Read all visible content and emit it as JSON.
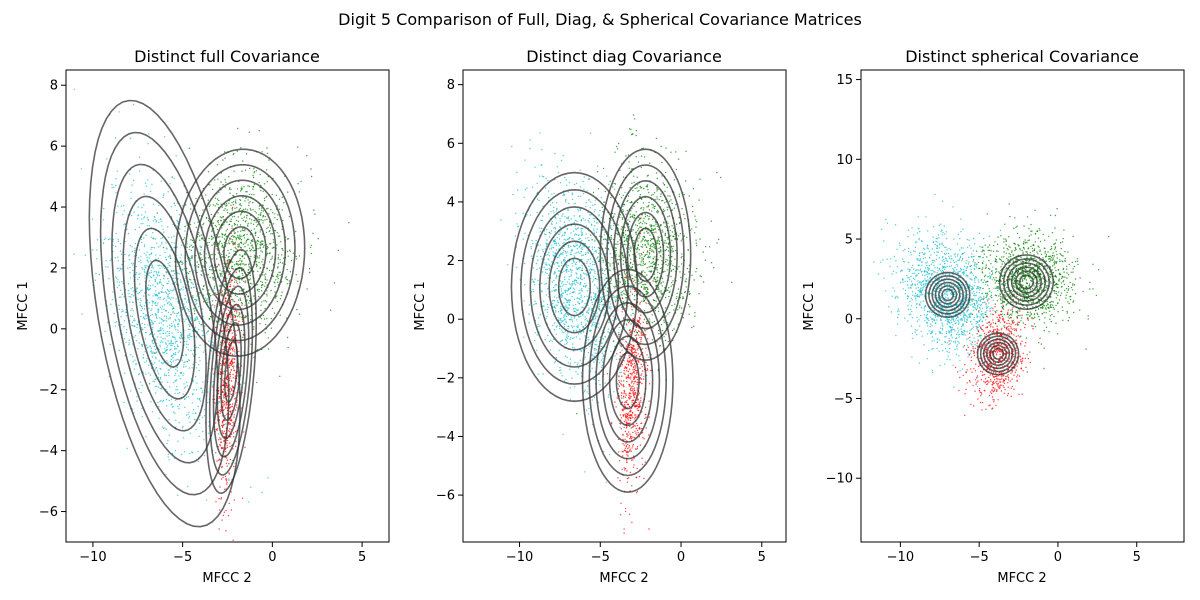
{
  "figure": {
    "title": "Digit 5 Comparison of Full, Diag, & Spherical Covariance Matrices"
  },
  "colors": {
    "cluster_cyan": "#17becf",
    "cluster_green": "#008000",
    "cluster_red": "#ff0000",
    "contour": "#333333"
  },
  "chart_data": [
    {
      "type": "scatter",
      "title": "Distinct full Covariance",
      "xlabel": "MFCC 2",
      "ylabel": "MFCC 1",
      "xlim": [
        -11.5,
        6.5
      ],
      "ylim": [
        -7,
        8.5
      ],
      "xticks": [
        -10,
        -5,
        0,
        5
      ],
      "yticks": [
        -6,
        -4,
        -2,
        0,
        2,
        4,
        6,
        8
      ],
      "covariance_type": "full",
      "series": [
        {
          "color": "cyan",
          "mean": [
            -6,
            0.5
          ],
          "sd": [
            1.6,
            2.0
          ],
          "rho": -0.4,
          "n": 1400
        },
        {
          "color": "green",
          "mean": [
            -1.8,
            2.5
          ],
          "sd": [
            1.6,
            1.4
          ],
          "rho": 0.0,
          "n": 1200
        },
        {
          "color": "red",
          "mean": [
            -2.5,
            -1.5
          ],
          "sd": [
            0.35,
            1.8
          ],
          "rho": 0.3,
          "n": 700
        }
      ],
      "ellipses": [
        {
          "center": [
            -6,
            0.5
          ],
          "sd": [
            2.1,
            3.5
          ],
          "rho": -0.45
        },
        {
          "center": [
            -1.8,
            2.5
          ],
          "sd": [
            1.8,
            1.7
          ],
          "rho": 0.05
        },
        {
          "center": [
            -2.3,
            -1.4
          ],
          "sd": [
            0.7,
            2.0
          ],
          "rho": 0.4
        }
      ]
    },
    {
      "type": "scatter",
      "title": "Distinct diag Covariance",
      "xlabel": "MFCC 2",
      "ylabel": "MFCC 1",
      "xlim": [
        -13.5,
        6.5
      ],
      "ylim": [
        -7.6,
        8.5
      ],
      "xticks": [
        -10,
        -5,
        0,
        5
      ],
      "yticks": [
        -6,
        -4,
        -2,
        0,
        2,
        4,
        6,
        8
      ],
      "covariance_type": "diag",
      "series": [
        {
          "color": "cyan",
          "mean": [
            -6.5,
            1.2
          ],
          "sd": [
            1.5,
            1.8
          ],
          "rho": -0.35,
          "n": 1400
        },
        {
          "color": "green",
          "mean": [
            -2.2,
            2.3
          ],
          "sd": [
            1.5,
            1.5
          ],
          "rho": 0.0,
          "n": 1200
        },
        {
          "color": "red",
          "mean": [
            -3.0,
            -2.3
          ],
          "sd": [
            0.45,
            1.6
          ],
          "rho": 0.3,
          "n": 700
        }
      ],
      "ellipses": [
        {
          "center": [
            -6.6,
            1.1
          ],
          "sd": [
            1.95,
            1.95
          ],
          "rho": 0
        },
        {
          "center": [
            -2.2,
            2.2
          ],
          "sd": [
            1.4,
            1.8
          ],
          "rho": 0
        },
        {
          "center": [
            -3.3,
            -2.1
          ],
          "sd": [
            1.4,
            1.9
          ],
          "rho": 0
        }
      ]
    },
    {
      "type": "scatter",
      "title": "Distinct spherical Covariance",
      "xlabel": "MFCC 2",
      "ylabel": "MFCC 1",
      "xlim": [
        -12.5,
        8
      ],
      "ylim": [
        -14,
        15.6
      ],
      "xticks": [
        -10,
        -5,
        0,
        5
      ],
      "yticks": [
        -10,
        -5,
        0,
        5,
        10,
        15
      ],
      "covariance_type": "spherical",
      "series": [
        {
          "color": "cyan",
          "mean": [
            -7,
            1.5
          ],
          "sd": [
            1.5,
            1.8
          ],
          "rho": -0.2,
          "n": 1400
        },
        {
          "color": "green",
          "mean": [
            -2,
            2.5
          ],
          "sd": [
            1.5,
            1.4
          ],
          "rho": 0.0,
          "n": 1200
        },
        {
          "color": "red",
          "mean": [
            -3.8,
            -2.3
          ],
          "sd": [
            0.9,
            1.4
          ],
          "rho": 0.2,
          "n": 700
        }
      ],
      "ellipses": [
        {
          "center": [
            -7,
            1.5
          ],
          "sd": [
            0.7,
            0.7
          ],
          "rho": 0
        },
        {
          "center": [
            -2,
            2.3
          ],
          "sd": [
            0.85,
            0.85
          ],
          "rho": 0
        },
        {
          "center": [
            -3.8,
            -2.2
          ],
          "sd": [
            0.65,
            0.65
          ],
          "rho": 0
        }
      ]
    }
  ]
}
